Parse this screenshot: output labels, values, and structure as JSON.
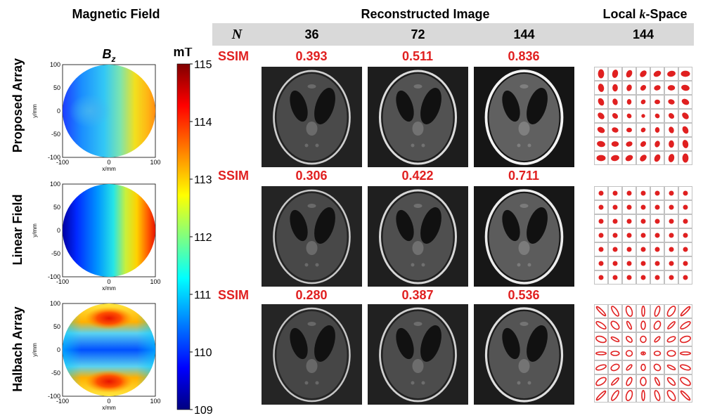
{
  "headers": {
    "magnetic_field": "Magnetic Field",
    "reconstructed_image": "Reconstructed Image",
    "local_kspace_prefix": "Local ",
    "local_kspace_k": "k",
    "local_kspace_suffix": "-Space"
  },
  "n_row": {
    "label": "N",
    "values": [
      "36",
      "72",
      "144"
    ],
    "kspace_value": "144"
  },
  "field_plot": {
    "title_var": "B",
    "title_sub": "z",
    "xlabel": "x/mm",
    "ylabel": "y/mm",
    "xticks": [
      "-100",
      "0",
      "100"
    ],
    "yticks": [
      "100",
      "50",
      "0",
      "-50",
      "-100"
    ]
  },
  "colorbar": {
    "unit": "mT",
    "ticks": [
      "115",
      "114",
      "113",
      "112",
      "111",
      "110",
      "109"
    ],
    "range": [
      109,
      115
    ]
  },
  "rows": [
    {
      "label": "Proposed Array",
      "ssim_label": "SSIM",
      "ssim": [
        "0.393",
        "0.511",
        "0.836"
      ]
    },
    {
      "label": "Linear Field",
      "ssim_label": "SSIM",
      "ssim": [
        "0.306",
        "0.422",
        "0.711"
      ]
    },
    {
      "label": "Halbach Array",
      "ssim_label": "SSIM",
      "ssim": [
        "0.280",
        "0.387",
        "0.536"
      ]
    }
  ],
  "colors": {
    "accent_red": "#e02020",
    "n_bar": "#d9d9d9"
  }
}
